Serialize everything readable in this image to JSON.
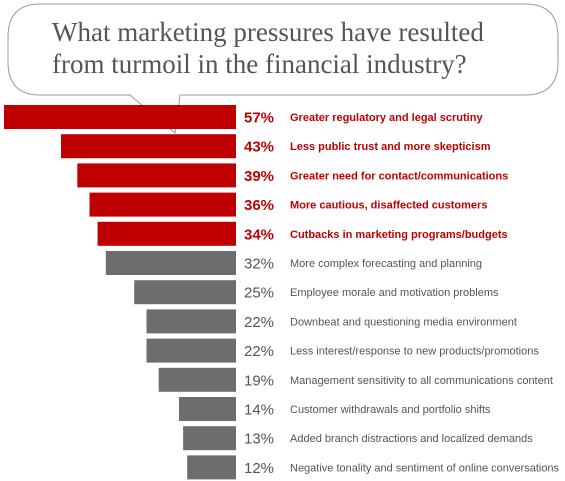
{
  "title": {
    "line1": "What marketing pressures have resulted",
    "line2": "from turmoil in the financial industry?"
  },
  "colors": {
    "highlight": "#c00000",
    "normal_bar": "#6d6d6d",
    "normal_text": "#555555",
    "bubble_stroke": "#9a9a9a"
  },
  "chart_data": {
    "type": "bar",
    "orientation": "horizontal",
    "unit": "%",
    "categories": [
      "Greater regulatory and legal scrutiny",
      "Less public trust and more skepticism",
      "Greater need for contact/communications",
      "More cautious, disaffected customers",
      "Cutbacks in marketing programs/budgets",
      "More complex forecasting and planning",
      "Employee morale and motivation problems",
      "Downbeat and questioning media environment",
      "Less interest/response to new products/promotions",
      "Management sensitivity to all communications content",
      "Customer withdrawals and portfolio shifts",
      "Added branch distractions and localized demands",
      "Negative tonality and sentiment of online conversations"
    ],
    "values": [
      57,
      43,
      39,
      36,
      34,
      32,
      25,
      22,
      22,
      19,
      14,
      13,
      12
    ],
    "value_labels": [
      "57%",
      "43%",
      "39%",
      "36%",
      "34%",
      "32%",
      "25%",
      "22%",
      "22%",
      "19%",
      "14%",
      "13%",
      "12%"
    ],
    "highlighted_count": 5
  }
}
